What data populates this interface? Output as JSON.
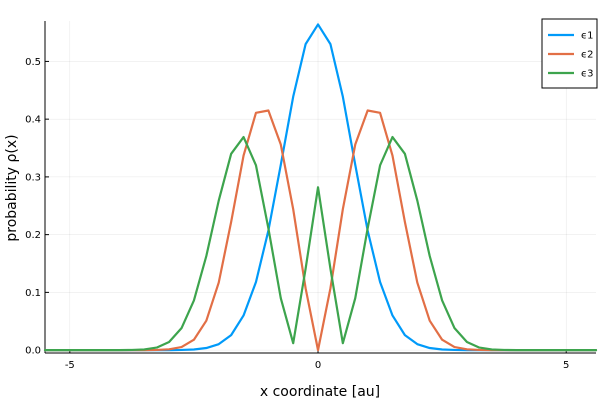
{
  "chart_data": {
    "type": "line",
    "title": "",
    "xlabel": "x coordinate [au]",
    "ylabel": "probability ρ(x)",
    "xlim": [
      -5.5,
      5.6
    ],
    "ylim": [
      -0.005,
      0.57
    ],
    "xticks": [
      -5,
      0,
      5
    ],
    "yticks": [
      0.0,
      0.1,
      0.2,
      0.3,
      0.4,
      0.5
    ],
    "grid": true,
    "legend_position": "top-right",
    "series": [
      {
        "name": "ϵ1",
        "color": "#009af9",
        "points": [
          [
            -5.5,
            0.0
          ],
          [
            -3.0,
            0.0
          ],
          [
            -2.75,
            0.0003
          ],
          [
            -2.5,
            0.0011
          ],
          [
            -2.25,
            0.0036
          ],
          [
            -2.0,
            0.0103
          ],
          [
            -1.75,
            0.026
          ],
          [
            -1.5,
            0.06
          ],
          [
            -1.25,
            0.118
          ],
          [
            -1.0,
            0.207
          ],
          [
            -0.75,
            0.321
          ],
          [
            -0.5,
            0.439
          ],
          [
            -0.25,
            0.53
          ],
          [
            0.0,
            0.564
          ],
          [
            0.25,
            0.53
          ],
          [
            0.5,
            0.439
          ],
          [
            0.75,
            0.321
          ],
          [
            1.0,
            0.207
          ],
          [
            1.25,
            0.118
          ],
          [
            1.5,
            0.06
          ],
          [
            1.75,
            0.026
          ],
          [
            2.0,
            0.0103
          ],
          [
            2.25,
            0.0036
          ],
          [
            2.5,
            0.0011
          ],
          [
            2.75,
            0.0003
          ],
          [
            3.0,
            0.0
          ],
          [
            5.6,
            0.0
          ]
        ]
      },
      {
        "name": "ϵ2",
        "color": "#e26f46",
        "points": [
          [
            -5.5,
            0.0
          ],
          [
            -3.5,
            0.0
          ],
          [
            -3.25,
            0.0003
          ],
          [
            -3.0,
            0.0014
          ],
          [
            -2.75,
            0.0053
          ],
          [
            -2.5,
            0.018
          ],
          [
            -2.25,
            0.051
          ],
          [
            -2.0,
            0.117
          ],
          [
            -1.75,
            0.222
          ],
          [
            -1.5,
            0.337
          ],
          [
            -1.25,
            0.411
          ],
          [
            -1.0,
            0.415
          ],
          [
            -0.75,
            0.356
          ],
          [
            -0.5,
            0.244
          ],
          [
            -0.25,
            0.107
          ],
          [
            0.0,
            0.0
          ],
          [
            0.25,
            0.107
          ],
          [
            0.5,
            0.244
          ],
          [
            0.75,
            0.356
          ],
          [
            1.0,
            0.415
          ],
          [
            1.25,
            0.411
          ],
          [
            1.5,
            0.337
          ],
          [
            1.75,
            0.222
          ],
          [
            2.0,
            0.117
          ],
          [
            2.25,
            0.051
          ],
          [
            2.5,
            0.018
          ],
          [
            2.75,
            0.0053
          ],
          [
            3.0,
            0.0014
          ],
          [
            3.25,
            0.0003
          ],
          [
            3.5,
            0.0
          ],
          [
            5.6,
            0.0
          ]
        ]
      },
      {
        "name": "ϵ3",
        "color": "#3da44d",
        "points": [
          [
            -5.5,
            0.0
          ],
          [
            -4.0,
            0.0
          ],
          [
            -3.75,
            0.0003
          ],
          [
            -3.5,
            0.0012
          ],
          [
            -3.25,
            0.0044
          ],
          [
            -3.0,
            0.014
          ],
          [
            -2.75,
            0.038
          ],
          [
            -2.5,
            0.086
          ],
          [
            -2.25,
            0.163
          ],
          [
            -2.0,
            0.259
          ],
          [
            -1.75,
            0.34
          ],
          [
            -1.5,
            0.369
          ],
          [
            -1.25,
            0.32
          ],
          [
            -1.0,
            0.211
          ],
          [
            -0.75,
            0.09
          ],
          [
            -0.5,
            0.012
          ],
          [
            -0.25,
            0.141
          ],
          [
            0.0,
            0.282
          ],
          [
            0.25,
            0.141
          ],
          [
            0.5,
            0.012
          ],
          [
            0.75,
            0.09
          ],
          [
            1.0,
            0.211
          ],
          [
            1.25,
            0.32
          ],
          [
            1.5,
            0.369
          ],
          [
            1.75,
            0.34
          ],
          [
            2.0,
            0.259
          ],
          [
            2.25,
            0.163
          ],
          [
            2.5,
            0.086
          ],
          [
            2.75,
            0.038
          ],
          [
            3.0,
            0.014
          ],
          [
            3.25,
            0.0044
          ],
          [
            3.5,
            0.0012
          ],
          [
            3.75,
            0.0003
          ],
          [
            4.0,
            0.0
          ],
          [
            5.6,
            0.0
          ]
        ]
      }
    ]
  }
}
